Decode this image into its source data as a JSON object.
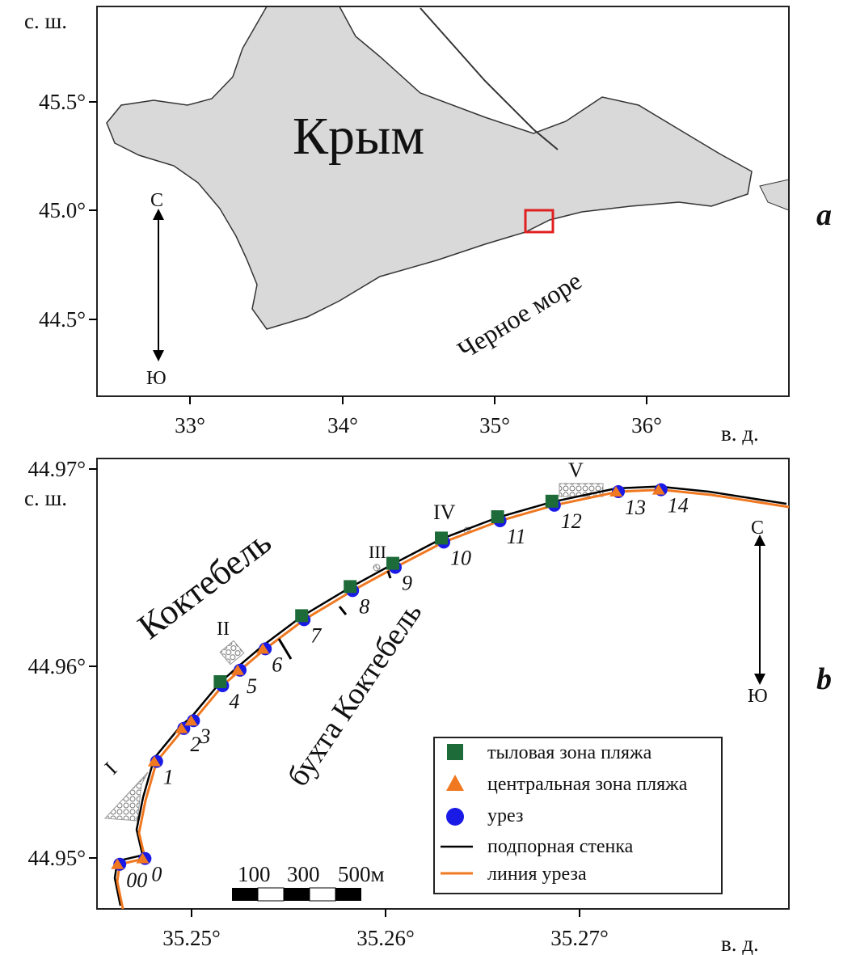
{
  "panel_a": {
    "letter": "a",
    "lat_label": "с. ш.",
    "lon_label": "в. д.",
    "lat_ticks": [
      "45.5°",
      "45.0°",
      "44.5°"
    ],
    "lon_ticks": [
      "33°",
      "34°",
      "35°",
      "36°"
    ],
    "region_label": "Крым",
    "sea_label": "Черное море",
    "north_label": "С",
    "south_label": "Ю",
    "land_color": "#d9d9d9",
    "highlight_color": "#e02020"
  },
  "panel_b": {
    "letter": "b",
    "lat_label": "с. ш.",
    "lon_label": "в. д.",
    "lat_ticks": [
      "44.97°",
      "44.96°",
      "44.95°"
    ],
    "lon_ticks": [
      "35.25°",
      "35.26°",
      "35.27°"
    ],
    "town_label": "Коктебель",
    "bay_label": "бухта Коктебель",
    "north_label": "С",
    "south_label": "Ю",
    "zones": [
      "I",
      "II",
      "III",
      "IV",
      "V"
    ],
    "scale_labels": [
      "100",
      "300",
      "500м"
    ],
    "legend": [
      {
        "label": "тыловая зона пляжа",
        "symbol": "square",
        "color": "#1e6b3a"
      },
      {
        "label": "центральная зона пляжа",
        "symbol": "triangle",
        "color": "#f07820"
      },
      {
        "label": "урез",
        "symbol": "circle",
        "color": "#1a1ae6"
      },
      {
        "label": "подпорная стенка",
        "symbol": "line",
        "color": "#000000"
      },
      {
        "label": "линия уреза",
        "symbol": "line",
        "color": "#f07820"
      }
    ],
    "stations": [
      {
        "id": "00",
        "lon": 35.2463,
        "lat": 44.9498,
        "square": false,
        "triangle": true
      },
      {
        "id": "0",
        "lon": 35.2476,
        "lat": 44.9501,
        "square": false,
        "triangle": true
      },
      {
        "id": "1",
        "lon": 35.2482,
        "lat": 44.9551,
        "square": false,
        "triangle": true
      },
      {
        "id": "2",
        "lon": 35.2496,
        "lat": 44.9568,
        "square": false,
        "triangle": true
      },
      {
        "id": "3",
        "lon": 35.2501,
        "lat": 44.9572,
        "square": false,
        "triangle": true
      },
      {
        "id": "4",
        "lon": 35.2516,
        "lat": 44.959,
        "square": true,
        "triangle": false
      },
      {
        "id": "5",
        "lon": 35.2525,
        "lat": 44.9598,
        "square": false,
        "triangle": true
      },
      {
        "id": "6",
        "lon": 35.2538,
        "lat": 44.9609,
        "square": false,
        "triangle": true
      },
      {
        "id": "7",
        "lon": 35.2558,
        "lat": 44.9624,
        "square": true,
        "triangle": false
      },
      {
        "id": "8",
        "lon": 35.2583,
        "lat": 44.9639,
        "square": true,
        "triangle": false
      },
      {
        "id": "9",
        "lon": 35.2605,
        "lat": 44.9651,
        "square": true,
        "triangle": false
      },
      {
        "id": "10",
        "lon": 35.263,
        "lat": 44.9664,
        "square": true,
        "triangle": false
      },
      {
        "id": "11",
        "lon": 35.2659,
        "lat": 44.9675,
        "square": true,
        "triangle": false
      },
      {
        "id": "12",
        "lon": 35.2687,
        "lat": 44.9683,
        "square": true,
        "triangle": false
      },
      {
        "id": "13",
        "lon": 35.272,
        "lat": 44.969,
        "square": false,
        "triangle": true
      },
      {
        "id": "14",
        "lon": 35.2742,
        "lat": 44.9691,
        "square": false,
        "triangle": true
      }
    ]
  }
}
